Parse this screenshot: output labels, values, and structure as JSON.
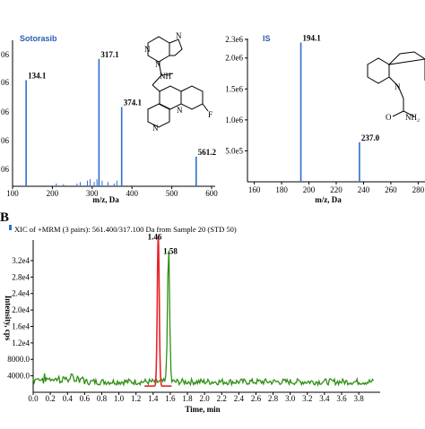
{
  "colors": {
    "ms_line": "#2e6fcf",
    "blue_title": "#2a5db0",
    "red_trace": "#e8232a",
    "green_trace": "#2f8f14",
    "axis": "#000000"
  },
  "panel_b_label": "B",
  "chart_data": [
    {
      "type": "bar",
      "title": "Sotorasib",
      "xlabel": "m/z, Da",
      "xlim": [
        100,
        600
      ],
      "xticks": [
        "100",
        "200",
        "300",
        "400",
        "500",
        "600"
      ],
      "yticks_visible": [
        "06",
        "06",
        "06",
        "06",
        "06"
      ],
      "peaks": [
        {
          "mz": 134.1,
          "rel": 0.75,
          "label": "134.1"
        },
        {
          "mz": 317.1,
          "rel": 0.9,
          "label": "317.1"
        },
        {
          "mz": 374.1,
          "rel": 0.56,
          "label": "374.1"
        },
        {
          "mz": 561.2,
          "rel": 0.21,
          "label": "561.2"
        }
      ],
      "structure_labels": [
        "N",
        "N",
        "N",
        "NH",
        "N",
        "N",
        "F"
      ]
    },
    {
      "type": "bar",
      "title": "IS",
      "xlabel": "m/z, Da",
      "xlim": [
        155,
        285
      ],
      "xticks": [
        "160",
        "180",
        "200",
        "220",
        "240",
        "260",
        "280"
      ],
      "ylim": [
        0,
        2300000
      ],
      "yticks": [
        {
          "label": "2.3e6",
          "value": 2300000
        },
        {
          "label": "2.0e6",
          "value": 2000000
        },
        {
          "label": "1.5e6",
          "value": 1500000
        },
        {
          "label": "1.0e6",
          "value": 1000000
        },
        {
          "label": "5.0e5",
          "value": 500000
        }
      ],
      "peaks": [
        {
          "mz": 194.1,
          "value": 2250000,
          "label": "194.1"
        },
        {
          "mz": 237.0,
          "value": 640000,
          "label": "237.0"
        }
      ],
      "structure_labels": [
        "N",
        "O",
        "NH₂"
      ]
    },
    {
      "type": "line",
      "title": "XIC of +MRM (3 pairs): 561.400/317.100 Da  from Sample 20 (STD 50)",
      "xlabel": "Time, min",
      "ylabel": "Intensity, cps",
      "xlim": [
        0.0,
        4.05
      ],
      "xticks": [
        "0.0",
        "0.2",
        "0.4",
        "0.6",
        "0.8",
        "1.0",
        "1.2",
        "1.4",
        "1.6",
        "1.8",
        "2.0",
        "2.2",
        "2.4",
        "2.6",
        "2.8",
        "3.0",
        "3.2",
        "3.4",
        "3.6",
        "3.8"
      ],
      "ylim": [
        0,
        37000
      ],
      "yticks": [
        {
          "label": "3.2e4",
          "value": 32000
        },
        {
          "label": "2.8e4",
          "value": 28000
        },
        {
          "label": "2.4e4",
          "value": 24000
        },
        {
          "label": "2.0e4",
          "value": 20000
        },
        {
          "label": "1.6e4",
          "value": 16000
        },
        {
          "label": "1.2e4",
          "value": 12000
        },
        {
          "label": "8000.0",
          "value": 8000
        },
        {
          "label": "4000.0",
          "value": 4000
        }
      ],
      "series": [
        {
          "peak_time": 1.46,
          "peak_value": 36500,
          "label": "1.46"
        },
        {
          "peak_time": 1.58,
          "peak_value": 33000,
          "label": "1.58"
        }
      ]
    }
  ]
}
